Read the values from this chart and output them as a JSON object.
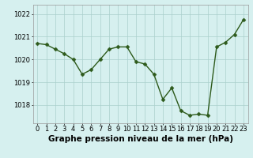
{
  "x": [
    0,
    1,
    2,
    3,
    4,
    5,
    6,
    7,
    8,
    9,
    10,
    11,
    12,
    13,
    14,
    15,
    16,
    17,
    18,
    19,
    20,
    21,
    22,
    23
  ],
  "y": [
    1020.7,
    1020.65,
    1020.45,
    1020.25,
    1020.0,
    1019.35,
    1019.55,
    1020.0,
    1020.45,
    1020.55,
    1020.55,
    1019.9,
    1019.8,
    1019.35,
    1018.25,
    1018.75,
    1017.75,
    1017.55,
    1017.6,
    1017.55,
    1020.55,
    1020.75,
    1021.1,
    1021.75
  ],
  "line_color": "#2d5a1b",
  "marker": "D",
  "markersize": 2.5,
  "linewidth": 1.0,
  "background_color": "#d6f0ef",
  "plot_bg_color": "#d6f0ef",
  "grid_color": "#aacfcc",
  "xlabel": "Graphe pression niveau de la mer (hPa)",
  "xlabel_fontsize": 7.5,
  "yticks": [
    1018,
    1019,
    1020,
    1021,
    1022
  ],
  "ylim": [
    1017.2,
    1022.4
  ],
  "xlim": [
    -0.5,
    23.5
  ],
  "xtick_labels": [
    "0",
    "1",
    "2",
    "3",
    "4",
    "5",
    "6",
    "7",
    "8",
    "9",
    "10",
    "11",
    "12",
    "13",
    "14",
    "15",
    "16",
    "17",
    "18",
    "19",
    "20",
    "21",
    "22",
    "23"
  ],
  "tick_fontsize": 6.0
}
